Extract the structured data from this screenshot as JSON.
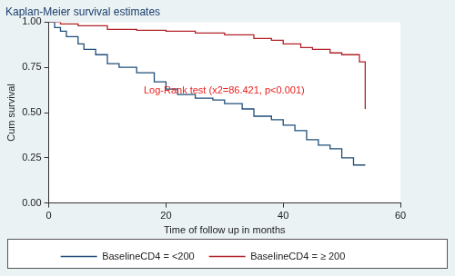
{
  "chart_data": {
    "type": "line",
    "title": "Kaplan-Meier survival estimates",
    "x_label": "Time of follow up in months",
    "y_label": "Cum survival",
    "annotations": [
      "Log-Rank test (x2=86.421, p<0.001)"
    ],
    "xlim": [
      0,
      60
    ],
    "xticks": [
      0,
      20,
      40,
      60
    ],
    "ylim": [
      0,
      1
    ],
    "yticks": [
      {
        "value": 0,
        "label": "0.00"
      },
      {
        "value": 0.25,
        "label": "0.25"
      },
      {
        "value": 0.5,
        "label": "0.50"
      },
      {
        "value": 0.75,
        "label": "0.75"
      },
      {
        "value": 1,
        "label": "1.00"
      }
    ],
    "grid": false,
    "legend": "bottom",
    "series": [
      {
        "name": "BaselineCD4 = <200",
        "color": "#1f4e79",
        "line_style": "step",
        "x": [
          0,
          1,
          2,
          3,
          5,
          6,
          8,
          10,
          12,
          15,
          18,
          20,
          22,
          25,
          28,
          30,
          33,
          35,
          38,
          40,
          42,
          44,
          46,
          48,
          50,
          52,
          54
        ],
        "values": [
          1.0,
          0.97,
          0.95,
          0.92,
          0.88,
          0.85,
          0.82,
          0.77,
          0.75,
          0.72,
          0.67,
          0.63,
          0.6,
          0.58,
          0.57,
          0.55,
          0.52,
          0.48,
          0.46,
          0.43,
          0.4,
          0.35,
          0.32,
          0.3,
          0.25,
          0.21,
          0.21
        ]
      },
      {
        "name": "BaselineCD4 = ≥ 200",
        "color": "#b22228",
        "line_style": "step",
        "x": [
          0,
          2,
          5,
          10,
          15,
          20,
          25,
          30,
          35,
          38,
          40,
          43,
          45,
          48,
          50,
          53,
          54
        ],
        "values": [
          1.0,
          0.99,
          0.98,
          0.96,
          0.955,
          0.95,
          0.94,
          0.93,
          0.91,
          0.9,
          0.88,
          0.86,
          0.85,
          0.83,
          0.82,
          0.78,
          0.52
        ]
      }
    ]
  }
}
